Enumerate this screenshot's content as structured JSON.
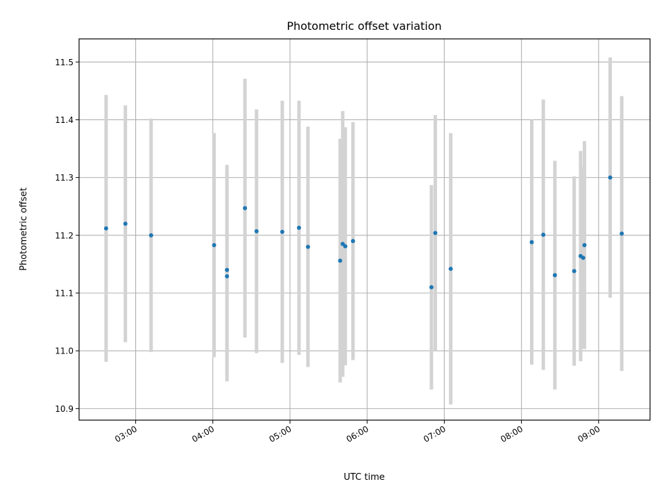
{
  "chart_data": {
    "type": "scatter",
    "title": "Photometric offset variation",
    "xlabel": "UTC time",
    "ylabel": "Photometric offset",
    "x_tick_labels": [
      "03:00",
      "04:00",
      "05:00",
      "06:00",
      "07:00",
      "08:00",
      "09:00"
    ],
    "y_tick_labels": [
      "10.9",
      "11.0",
      "11.1",
      "11.2",
      "11.3",
      "11.4",
      "11.5"
    ],
    "xlim": [
      "02:16",
      "09:40"
    ],
    "ylim": [
      10.88,
      11.54
    ],
    "grid": true,
    "colors": {
      "marker": "#1f77b4",
      "errorbar": "#d3d3d3",
      "grid": "#b0b0b0"
    },
    "points": [
      {
        "x": "02:37",
        "y": 11.212,
        "err": 0.231
      },
      {
        "x": "02:52",
        "y": 11.22,
        "err": 0.205
      },
      {
        "x": "03:12",
        "y": 11.2,
        "err": 0.202
      },
      {
        "x": "04:01",
        "y": 11.183,
        "err": 0.194
      },
      {
        "x": "04:11",
        "y": 11.14,
        "err": 0.182
      },
      {
        "x": "04:11",
        "y": 11.129,
        "err": 0.182
      },
      {
        "x": "04:25",
        "y": 11.247,
        "err": 0.224
      },
      {
        "x": "04:34",
        "y": 11.207,
        "err": 0.211
      },
      {
        "x": "04:54",
        "y": 11.206,
        "err": 0.227
      },
      {
        "x": "05:07",
        "y": 11.213,
        "err": 0.22
      },
      {
        "x": "05:14",
        "y": 11.18,
        "err": 0.208
      },
      {
        "x": "05:39",
        "y": 11.156,
        "err": 0.211
      },
      {
        "x": "05:41",
        "y": 11.185,
        "err": 0.23
      },
      {
        "x": "05:43",
        "y": 11.181,
        "err": 0.206
      },
      {
        "x": "05:49",
        "y": 11.19,
        "err": 0.206
      },
      {
        "x": "06:50",
        "y": 11.11,
        "err": 0.177
      },
      {
        "x": "06:53",
        "y": 11.204,
        "err": 0.204
      },
      {
        "x": "07:05",
        "y": 11.142,
        "err": 0.235
      },
      {
        "x": "08:08",
        "y": 11.188,
        "err": 0.212
      },
      {
        "x": "08:17",
        "y": 11.201,
        "err": 0.234
      },
      {
        "x": "08:26",
        "y": 11.131,
        "err": 0.198
      },
      {
        "x": "08:41",
        "y": 11.138,
        "err": 0.164
      },
      {
        "x": "08:46",
        "y": 11.164,
        "err": 0.182
      },
      {
        "x": "08:48",
        "y": 11.161,
        "err": 0.157
      },
      {
        "x": "08:49",
        "y": 11.183,
        "err": 0.18
      },
      {
        "x": "09:09",
        "y": 11.3,
        "err": 0.208
      },
      {
        "x": "09:18",
        "y": 11.203,
        "err": 0.238
      }
    ]
  }
}
